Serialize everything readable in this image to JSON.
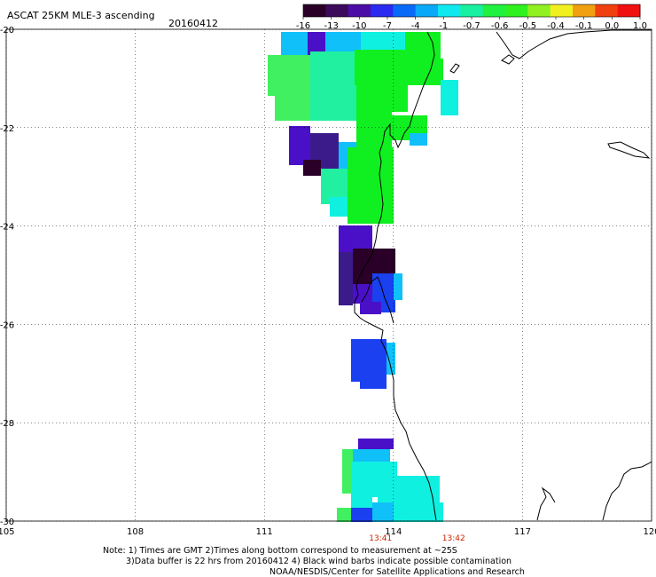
{
  "header": {
    "title": "ASCAT 25KM MLE-3 ascending",
    "date": "20160412"
  },
  "colorbar": {
    "labels": [
      "-16",
      "-13",
      "-10",
      "-7",
      "-4",
      "-1",
      "-0.7",
      "-0.6",
      "-0.5",
      "-0.4",
      "-0.1",
      "0.0",
      "1.0"
    ],
    "colors": [
      "#2a0028",
      "#3b0a5a",
      "#4a0ea6",
      "#2a2af0",
      "#0a6af8",
      "#0aa8f8",
      "#10e8f0",
      "#18f0a0",
      "#20f040",
      "#30f020",
      "#90f020",
      "#f0f020",
      "#f0a010",
      "#f04010",
      "#f01010"
    ]
  },
  "map": {
    "lon_labels": [
      "105",
      "108",
      "111",
      "114",
      "117",
      "120"
    ],
    "lat_labels": [
      "-20",
      "-22",
      "-24",
      "-26",
      "-28",
      "-30"
    ],
    "lon_range": [
      105,
      120
    ],
    "lat_range": [
      -30,
      -20
    ],
    "time_labels": [
      {
        "text": "13:41",
        "lon": 113.7
      },
      {
        "text": "13:42",
        "lon": 115.4
      }
    ],
    "colors": {
      "dark_purple": "#2a0028",
      "purple": "#3b1a8a",
      "violet": "#4a10c8",
      "blue": "#1a40f0",
      "sky": "#10c0f8",
      "cyan": "#10f0e0",
      "teal": "#20f0a0",
      "green": "#10f020",
      "lightgreen": "#40f060"
    }
  },
  "notes": {
    "line1": "Note: 1) Times are GMT 2)Times along bottom correspond to measurement at ~25S",
    "line2": "3)Data buffer is 22 hrs from 20160412 4) Black wind barbs indicate possible contamination",
    "line3": "NOAA/NESDIS/Center for Satellite Applications and Research"
  }
}
